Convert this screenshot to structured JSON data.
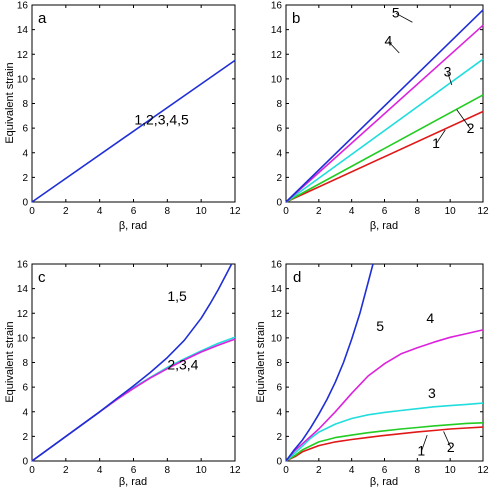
{
  "chart_data": [
    {
      "panel": "a",
      "type": "line",
      "xlabel": "β, rad",
      "ylabel": "Equivalent strain",
      "xlim": [
        0,
        12
      ],
      "ylim": [
        0,
        16
      ],
      "xticks": [
        0,
        2,
        4,
        6,
        8,
        10,
        12
      ],
      "yticks": [
        0,
        2,
        4,
        6,
        8,
        10,
        12,
        14,
        16
      ],
      "series": [
        {
          "name": "1,2,3,4,5",
          "color": "#1f2fd6",
          "x": [
            0,
            12
          ],
          "y": [
            0,
            11.5
          ]
        }
      ],
      "annotations": [
        {
          "text": "1,2,3,4,5",
          "x": 6.05,
          "y": 6.3
        }
      ]
    },
    {
      "panel": "b",
      "type": "line",
      "xlabel": "β, rad",
      "ylabel": "",
      "xlim": [
        0,
        12
      ],
      "ylim": [
        0,
        16
      ],
      "xticks": [
        0,
        2,
        4,
        6,
        8,
        10,
        12
      ],
      "yticks": [
        0,
        2,
        4,
        6,
        8,
        10,
        12,
        14,
        16
      ],
      "series": [
        {
          "name": "1",
          "color": "#e01818",
          "x": [
            0,
            12
          ],
          "y": [
            0,
            7.35
          ]
        },
        {
          "name": "2",
          "color": "#22cc22",
          "x": [
            0,
            12
          ],
          "y": [
            0,
            8.7
          ]
        },
        {
          "name": "3",
          "color": "#22dddd",
          "x": [
            0,
            12
          ],
          "y": [
            0,
            11.6
          ]
        },
        {
          "name": "4",
          "color": "#dd22dd",
          "x": [
            0,
            12
          ],
          "y": [
            0,
            14.35
          ]
        },
        {
          "name": "5",
          "color": "#1f2fd6",
          "x": [
            0,
            12
          ],
          "y": [
            0,
            15.6
          ]
        }
      ],
      "annotations": [
        {
          "text": "1",
          "x": 8.9,
          "y": 4.4,
          "lead_x": 9.7,
          "lead_y": 5.85
        },
        {
          "text": "2",
          "x": 11.0,
          "y": 5.6,
          "lead_x": 10.4,
          "lead_y": 7.5
        },
        {
          "text": "3",
          "x": 9.6,
          "y": 10.2,
          "lead_x": 10.1,
          "lead_y": 9.5
        },
        {
          "text": "4",
          "x": 6.0,
          "y": 12.7,
          "lead_x": 6.9,
          "lead_y": 12.1
        },
        {
          "text": "5",
          "x": 6.45,
          "y": 15.0,
          "lead_x": 7.7,
          "lead_y": 14.6
        }
      ]
    },
    {
      "panel": "c",
      "type": "line",
      "xlabel": "β, rad",
      "ylabel": "Equivalent strain",
      "xlim": [
        0,
        12
      ],
      "ylim": [
        0,
        16
      ],
      "xticks": [
        0,
        2,
        4,
        6,
        8,
        10,
        12
      ],
      "yticks": [
        0,
        2,
        4,
        6,
        8,
        10,
        12,
        14,
        16
      ],
      "series": [
        {
          "name": "2,3,4 (cyan)",
          "color": "#22dddd",
          "x": [
            0,
            4,
            5,
            6,
            7,
            8,
            9,
            10,
            11,
            12
          ],
          "y": [
            0,
            4.0,
            5.0,
            5.95,
            6.8,
            7.6,
            8.3,
            8.95,
            9.55,
            10.05
          ]
        },
        {
          "name": "2,3,4",
          "color": "#dd22dd",
          "x": [
            0,
            4,
            5,
            6,
            7,
            8,
            9,
            10,
            11,
            12
          ],
          "y": [
            0,
            4.0,
            4.98,
            5.9,
            6.75,
            7.5,
            8.2,
            8.85,
            9.4,
            9.9
          ]
        },
        {
          "name": "1,5",
          "color": "#1f2fd6",
          "x": [
            0,
            4,
            5,
            6,
            7,
            8,
            9,
            10,
            10.5,
            11,
            11.5,
            11.8
          ],
          "y": [
            0,
            4.0,
            5.05,
            6.1,
            7.2,
            8.4,
            9.8,
            11.6,
            12.7,
            13.9,
            15.2,
            16.0
          ]
        }
      ],
      "annotations": [
        {
          "text": "1,5",
          "x": 8.0,
          "y": 13.0
        },
        {
          "text": "2,3,4",
          "x": 8.0,
          "y": 7.45
        }
      ]
    },
    {
      "panel": "d",
      "type": "line",
      "xlabel": "β, rad",
      "ylabel": "Equivalent strain",
      "xlim": [
        0,
        12
      ],
      "ylim": [
        0,
        16
      ],
      "xticks": [
        0,
        2,
        4,
        6,
        8,
        10,
        12
      ],
      "yticks": [
        0,
        2,
        4,
        6,
        8,
        10,
        12,
        14,
        16
      ],
      "series": [
        {
          "name": "1",
          "color": "#e01818",
          "x": [
            0,
            0.3,
            0.6,
            1,
            2,
            3,
            4,
            5,
            6,
            7,
            8,
            9,
            10,
            11,
            12
          ],
          "y": [
            0,
            0.2,
            0.4,
            0.75,
            1.25,
            1.55,
            1.75,
            1.92,
            2.08,
            2.22,
            2.36,
            2.48,
            2.6,
            2.68,
            2.75
          ]
        },
        {
          "name": "2",
          "color": "#22cc22",
          "x": [
            0,
            0.3,
            0.6,
            1,
            2,
            3,
            4,
            5,
            6,
            7,
            8,
            9,
            10,
            11,
            12
          ],
          "y": [
            0,
            0.25,
            0.5,
            0.9,
            1.55,
            1.9,
            2.1,
            2.3,
            2.45,
            2.6,
            2.72,
            2.85,
            2.95,
            3.05,
            3.1
          ]
        },
        {
          "name": "3",
          "color": "#22dddd",
          "x": [
            0,
            0.5,
            1,
            1.5,
            2,
            3,
            4,
            5,
            6,
            7,
            8,
            9,
            10,
            11,
            12
          ],
          "y": [
            0,
            0.6,
            1.2,
            1.85,
            2.35,
            3.0,
            3.45,
            3.75,
            3.95,
            4.1,
            4.25,
            4.4,
            4.5,
            4.6,
            4.7
          ]
        },
        {
          "name": "4",
          "color": "#dd22dd",
          "x": [
            0,
            0.5,
            1,
            2,
            3,
            4,
            5,
            6,
            7,
            8,
            9,
            10,
            11,
            12
          ],
          "y": [
            0,
            0.8,
            1.4,
            2.6,
            4.0,
            5.5,
            6.9,
            7.9,
            8.7,
            9.2,
            9.65,
            10.05,
            10.35,
            10.65
          ]
        },
        {
          "name": "5",
          "color": "#1f2fd6",
          "x": [
            0,
            0.5,
            1,
            1.5,
            2,
            2.5,
            3,
            3.5,
            4,
            4.5,
            5,
            5.3
          ],
          "y": [
            0,
            0.9,
            1.7,
            2.7,
            3.8,
            5.0,
            6.4,
            8.0,
            9.9,
            12.0,
            14.5,
            16.0
          ]
        }
      ],
      "annotations": [
        {
          "text": "5",
          "x": 5.5,
          "y": 10.55
        },
        {
          "text": "4",
          "x": 8.55,
          "y": 11.2
        },
        {
          "text": "3",
          "x": 8.65,
          "y": 5.1
        },
        {
          "text": "2",
          "x": 9.8,
          "y": 0.75,
          "lead_x": 9.6,
          "lead_y": 2.4
        },
        {
          "text": "1",
          "x": 8.0,
          "y": 0.45,
          "lead_x": 8.6,
          "lead_y": 2.1
        }
      ]
    }
  ]
}
